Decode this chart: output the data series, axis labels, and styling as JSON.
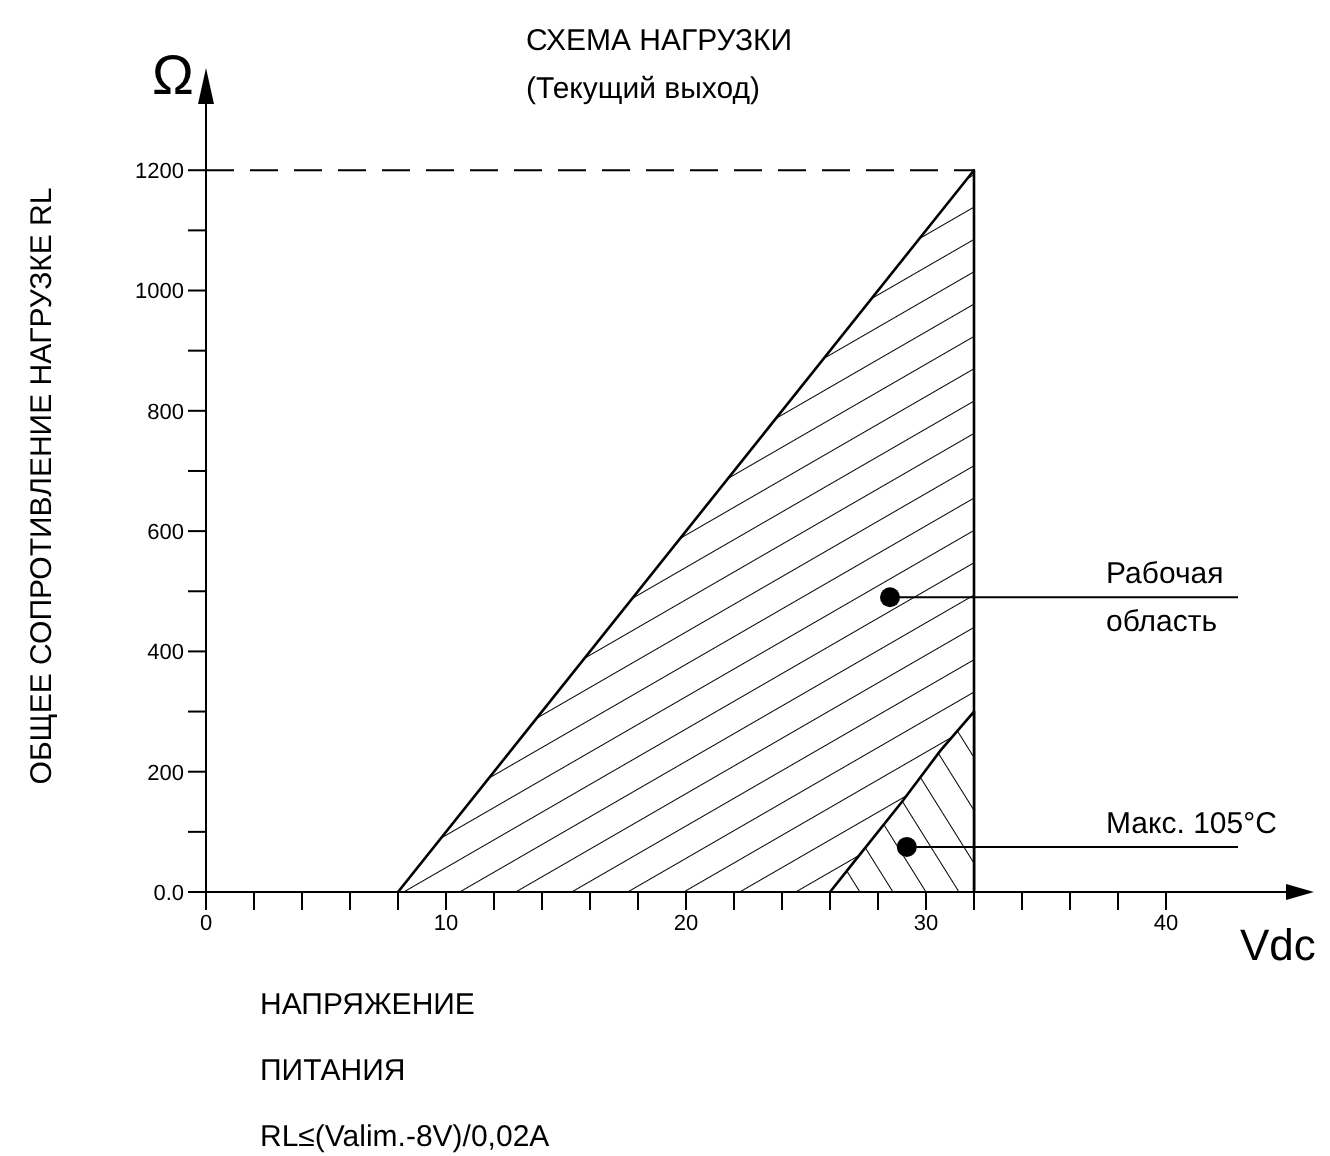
{
  "chart_data": {
    "type": "area",
    "title": "СХЕМА НАГРУЗКИ",
    "subtitle": "(Текущий выход)",
    "xlabel": "Vdc",
    "ylabel": "ОБЩЕЕ СОПРОТИВЛЕНИЕ НАГРУЗКЕ RL",
    "annotations": [
      "Ω",
      "НАПРЯЖЕНИЕ ПИТАНИЯ",
      "RL≤(Valim.-8V)/0,02A",
      {
        "text": "Рабочая область",
        "x": 28.5,
        "y": 490
      },
      {
        "text": "Макс. 105°C",
        "x": 29.2,
        "y": 75
      }
    ],
    "series": [
      {
        "color": "#000000",
        "x": [
          8,
          32,
          32
        ],
        "values": [
          0,
          1200,
          0
        ]
      },
      {
        "color": "#000000",
        "x": [
          26,
          27,
          29,
          30.6,
          32,
          32
        ],
        "values": [
          0,
          50,
          150,
          235,
          300,
          0
        ]
      }
    ],
    "xlim": [
      0,
      46
    ],
    "xticks": [
      0,
      {
        "value": 2,
        "label": null
      },
      {
        "value": 4,
        "label": null
      },
      {
        "value": 6,
        "label": null
      },
      {
        "value": 8,
        "label": null
      },
      10,
      {
        "value": 12,
        "label": null
      },
      {
        "value": 14,
        "label": null
      },
      {
        "value": 16,
        "label": null
      },
      {
        "value": 18,
        "label": null
      },
      20,
      {
        "value": 22,
        "label": null
      },
      {
        "value": 24,
        "label": null
      },
      {
        "value": 26,
        "label": null
      },
      {
        "value": 28,
        "label": null
      },
      30,
      {
        "value": 32,
        "label": null
      },
      {
        "value": 34,
        "label": null
      },
      {
        "value": 36,
        "label": null
      },
      {
        "value": 38,
        "label": null
      },
      40
    ],
    "ylim": [
      0,
      1350
    ],
    "yticks": [
      {
        "value": 0,
        "label": "0.0"
      },
      {
        "value": 100,
        "label": null
      },
      200,
      {
        "value": 300,
        "label": null
      },
      400,
      {
        "value": 500,
        "label": null
      },
      600,
      {
        "value": 700,
        "label": null
      },
      800,
      {
        "value": 900,
        "label": null
      },
      1000,
      {
        "value": 1100,
        "label": null
      },
      1200
    ],
    "ref_lines": [
      {
        "axis": "y",
        "value": 1200,
        "line_style": "dashed",
        "color": "#000000"
      }
    ],
    "marker": "none"
  }
}
